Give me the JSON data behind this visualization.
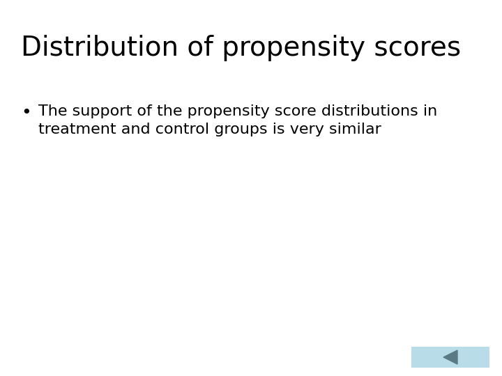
{
  "title": "Distribution of propensity scores",
  "bullet_line1": "The support of the propensity score distributions in",
  "bullet_line2": "treatment and control groups is very similar",
  "background_color": "#ffffff",
  "title_color": "#000000",
  "bullet_color": "#000000",
  "title_fontsize": 28,
  "bullet_fontsize": 16,
  "nav_box_color": "#b8dce8",
  "nav_arrow_color": "#5a7a85"
}
